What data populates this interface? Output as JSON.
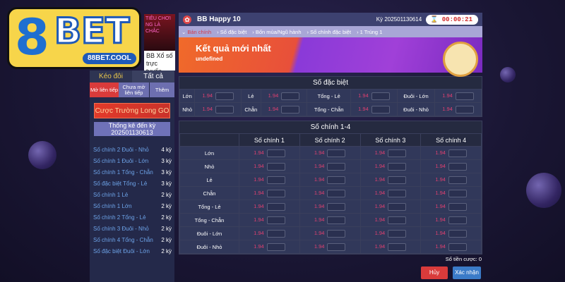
{
  "logo": {
    "text": "8BET",
    "url": "88BET.COOL"
  },
  "promo": {
    "banner_text": "TIÊU CHƠI NG LÀ CHẮC",
    "caption": "BB Xổ số trực tuyến"
  },
  "sidebar": {
    "tabs": [
      "Kéo đôi",
      "Tất cả"
    ],
    "subtabs": [
      "Mở liên tiếp",
      "Chưa mở liên tiếp",
      "Thêm"
    ],
    "cuoc_button": "Cược Trường Long GO",
    "stat_title": "Thống kê đến kỳ",
    "stat_period": "202501130613",
    "streaks": [
      {
        "name": "Số chính 2 Đuôi - Nhỏ",
        "count": "4 kỳ"
      },
      {
        "name": "Số chính 1 Đuôi - Lớn",
        "count": "3 kỳ"
      },
      {
        "name": "Số chính 1 Tổng - Chẵn",
        "count": "3 kỳ"
      },
      {
        "name": "Số đặc biệt Tổng - Lẻ",
        "count": "3 kỳ"
      },
      {
        "name": "Số chính 1 Lẻ",
        "count": "2 kỳ"
      },
      {
        "name": "Số chính 1 Lớn",
        "count": "2 kỳ"
      },
      {
        "name": "Số chính 2 Tổng - Lẻ",
        "count": "2 kỳ"
      },
      {
        "name": "Số chính 3 Đuôi - Nhỏ",
        "count": "2 kỳ"
      },
      {
        "name": "Số chính 4 Tổng - Chẵn",
        "count": "2 kỳ"
      },
      {
        "name": "Số đặc biệt Đuôi - Lớn",
        "count": "2 kỳ"
      }
    ]
  },
  "header": {
    "title": "BB Happy 10",
    "period": "Kỳ 202501130614",
    "timer": "00:00:21"
  },
  "breadcrumbs": [
    "Bản chính",
    "Số đặc biệt",
    "Bốn mùa/Ngũ hành",
    "Số chính đặc biệt",
    "1 Trúng 1"
  ],
  "banner": {
    "title": "Kết quả mới nhất",
    "value": "undefined"
  },
  "special": {
    "title": "Số đặc biệt",
    "rows": [
      [
        {
          "label": "Lớn",
          "odds": "1.94"
        },
        {
          "label": "Lẻ",
          "odds": "1.94"
        },
        {
          "label": "Tổng - Lẻ",
          "odds": "1.94"
        },
        {
          "label": "Đuôi - Lớn",
          "odds": "1.94"
        }
      ],
      [
        {
          "label": "Nhỏ",
          "odds": "1.94"
        },
        {
          "label": "Chẵn",
          "odds": "1.94"
        },
        {
          "label": "Tổng - Chẵn",
          "odds": "1.94"
        },
        {
          "label": "Đuôi - Nhỏ",
          "odds": "1.94"
        }
      ]
    ]
  },
  "main_table": {
    "title": "Số chính 1-4",
    "columns": [
      "Số chính 1",
      "Số chính 2",
      "Số chính 3",
      "Số chính 4"
    ],
    "rows": [
      {
        "label": "Lớn",
        "odds": [
          "1.94",
          "1.94",
          "1.94",
          "1.94"
        ]
      },
      {
        "label": "Nhỏ",
        "odds": [
          "1.94",
          "1.94",
          "1.94",
          "1.94"
        ]
      },
      {
        "label": "Lẻ",
        "odds": [
          "1.94",
          "1.94",
          "1.94",
          "1.94"
        ]
      },
      {
        "label": "Chẵn",
        "odds": [
          "1.94",
          "1.94",
          "1.94",
          "1.94"
        ]
      },
      {
        "label": "Tổng - Lẻ",
        "odds": [
          "1.94",
          "1.94",
          "1.94",
          "1.94"
        ]
      },
      {
        "label": "Tổng - Chẵn",
        "odds": [
          "1.94",
          "1.94",
          "1.94",
          "1.94"
        ]
      },
      {
        "label": "Đuôi - Lớn",
        "odds": [
          "1.94",
          "1.94",
          "1.94",
          "1.94"
        ]
      },
      {
        "label": "Đuôi - Nhỏ",
        "odds": [
          "1.94",
          "1.94",
          "1.94",
          "1.94"
        ]
      }
    ]
  },
  "footer": {
    "total_label": "Số tiền cược: 0",
    "cancel": "Hủy",
    "confirm": "Xác nhận"
  },
  "colors": {
    "odds": "#e04070",
    "cancel": "#d93b3b",
    "confirm": "#3b7bc8",
    "header": "#3d4170"
  }
}
